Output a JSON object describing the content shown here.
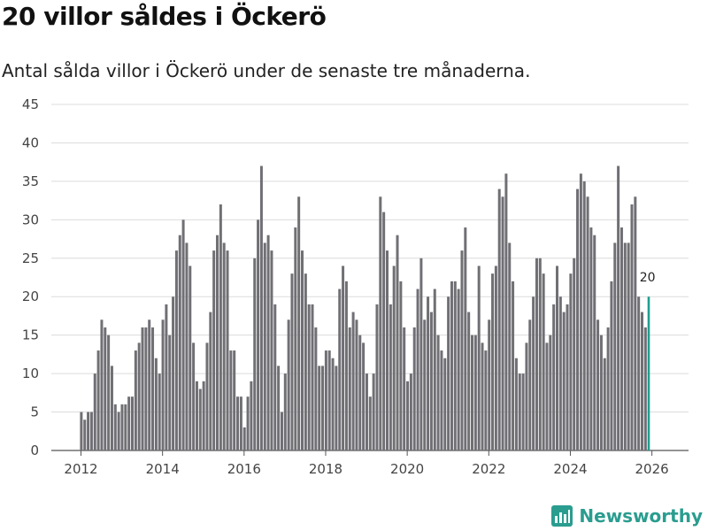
{
  "title": "20 villor såldes i Öckerö",
  "subtitle": "Antal sålda villor i Öckerö under de senaste tre månaderna.",
  "brand": "Newsworthy",
  "colors": {
    "bar": "#706f74",
    "highlight": "#1f9e8f",
    "grid": "#dcdcdc",
    "text": "#444444",
    "brand": "#2a9d8f"
  },
  "chart_data": {
    "type": "bar",
    "title": "20 villor såldes i Öckerö",
    "xlabel": "",
    "ylabel": "",
    "ylim": [
      0,
      45
    ],
    "yticks": [
      0,
      5,
      10,
      15,
      20,
      25,
      30,
      35,
      40,
      45
    ],
    "xticks": [
      "2012",
      "2014",
      "2016",
      "2018",
      "2020",
      "2022",
      "2024",
      "2026"
    ],
    "start": {
      "year": 2012,
      "month": 1
    },
    "frequency": "monthly",
    "values": [
      5,
      4,
      5,
      5,
      10,
      13,
      17,
      16,
      15,
      11,
      6,
      5,
      6,
      6,
      7,
      7,
      13,
      14,
      16,
      16,
      17,
      16,
      12,
      10,
      17,
      19,
      15,
      20,
      26,
      28,
      30,
      27,
      24,
      14,
      9,
      8,
      9,
      14,
      18,
      26,
      28,
      32,
      27,
      26,
      13,
      13,
      7,
      7,
      3,
      7,
      9,
      25,
      30,
      37,
      27,
      28,
      26,
      19,
      11,
      5,
      10,
      17,
      23,
      29,
      33,
      26,
      23,
      19,
      19,
      16,
      11,
      11,
      13,
      13,
      12,
      11,
      21,
      24,
      22,
      16,
      18,
      17,
      15,
      14,
      10,
      7,
      10,
      19,
      33,
      31,
      26,
      19,
      24,
      28,
      22,
      16,
      9,
      10,
      16,
      21,
      25,
      17,
      20,
      18,
      21,
      15,
      13,
      12,
      20,
      22,
      22,
      21,
      26,
      29,
      18,
      15,
      15,
      24,
      14,
      13,
      17,
      23,
      24,
      34,
      33,
      36,
      27,
      22,
      12,
      10,
      10,
      14,
      17,
      20,
      25,
      25,
      23,
      14,
      15,
      19,
      24,
      20,
      18,
      19,
      23,
      25,
      34,
      36,
      35,
      33,
      29,
      28,
      17,
      15,
      12,
      16,
      22,
      27,
      37,
      29,
      27,
      27,
      32,
      33,
      20,
      18,
      16,
      20
    ],
    "highlight_last": true,
    "annotation": {
      "label": "20",
      "value": 20,
      "position": "last-bar"
    }
  }
}
